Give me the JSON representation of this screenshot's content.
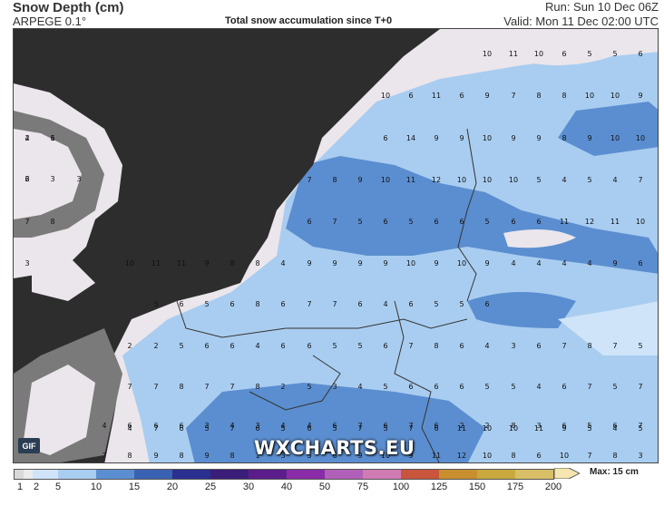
{
  "header": {
    "title": "Snow Depth (cm)",
    "model": "ARPEGE 0.1°",
    "subtitle": "Total snow accumulation since T+0",
    "run": "Run: Sun 10 Dec 06Z",
    "valid": "Valid: Mon 11 Dec 02:00 UTC"
  },
  "map": {
    "colors": {
      "sea": "#2d2d2d",
      "land_bare": "#ebe6ec",
      "snow_light": "#a9cdf0",
      "snow_mid": "#5b8ed0",
      "grey_light": "#7a7a7a",
      "grey_dark": "#4a4a4a"
    },
    "gif_button": "GIF",
    "watermark": "WXCHARTS.EU",
    "values": [
      "2",
      "1",
      "2",
      "3",
      "3",
      "7",
      "8",
      "3",
      "2",
      "2",
      "5",
      "6",
      "6",
      "4",
      "6",
      "6",
      "5",
      "5",
      "6",
      "7",
      "8",
      "6",
      "4",
      "3",
      "6",
      "7",
      "8",
      "7",
      "5",
      "5",
      "6",
      "5",
      "6",
      "8",
      "6",
      "7",
      "7",
      "6",
      "4",
      "6",
      "5",
      "5",
      "6",
      "7",
      "8",
      "9",
      "10",
      "11",
      "12",
      "10",
      "10",
      "10",
      "5",
      "4",
      "5",
      "4",
      "7",
      "6",
      "14",
      "9",
      "9",
      "10",
      "9",
      "9",
      "8",
      "9",
      "10",
      "10",
      "10",
      "6",
      "11",
      "6",
      "9",
      "7",
      "8",
      "8",
      "10",
      "10",
      "9",
      "10",
      "11",
      "10",
      "6",
      "5",
      "5",
      "6",
      "7",
      "7",
      "8",
      "7",
      "7",
      "8",
      "2",
      "5",
      "3",
      "4",
      "5",
      "6",
      "6",
      "6",
      "5",
      "5",
      "4",
      "6",
      "7",
      "5",
      "7",
      "6",
      "7",
      "5",
      "6",
      "5",
      "6",
      "6",
      "5",
      "6",
      "6",
      "11",
      "12",
      "11",
      "10",
      "10",
      "11",
      "11",
      "9",
      "8",
      "8",
      "4",
      "9",
      "9",
      "9",
      "9",
      "10",
      "9",
      "10",
      "9",
      "4",
      "4",
      "4",
      "4",
      "9",
      "6",
      "4",
      "7",
      "6",
      "5",
      "7",
      "6",
      "5",
      "6",
      "5",
      "7",
      "5",
      "7",
      "6",
      "11",
      "10",
      "10",
      "11",
      "9",
      "5",
      "4",
      "5",
      "4",
      "6",
      "6",
      "6",
      "3",
      "4",
      "3",
      "4",
      "4",
      "6",
      "7",
      "6",
      "7",
      "6",
      "2",
      "2",
      "8",
      "3",
      "6",
      "5",
      "6",
      "7",
      "7",
      "8",
      "9",
      "8",
      "9",
      "8",
      "1",
      "3",
      "5",
      "6",
      "9",
      "10",
      "9",
      "11",
      "12",
      "10",
      "8",
      "6",
      "10",
      "7",
      "8",
      "3",
      "4",
      "6",
      "6"
    ]
  },
  "legend": {
    "labels": [
      "1",
      "2",
      "5",
      "10",
      "15",
      "20",
      "25",
      "30",
      "40",
      "50",
      "75",
      "100",
      "125",
      "150",
      "175",
      "200"
    ],
    "colors": [
      "#d9d9d9",
      "#ebebeb",
      "#cfe4f8",
      "#a9cdf0",
      "#5b8ed0",
      "#3a62b3",
      "#2b2f8f",
      "#3b1d7a",
      "#5a1d8a",
      "#8a2ca8",
      "#b060b8",
      "#d07ab4",
      "#c9553d",
      "#c98f2f",
      "#c9a83d",
      "#d8be66",
      "#f5e6b0"
    ],
    "max_label": "Max: 15 cm"
  }
}
